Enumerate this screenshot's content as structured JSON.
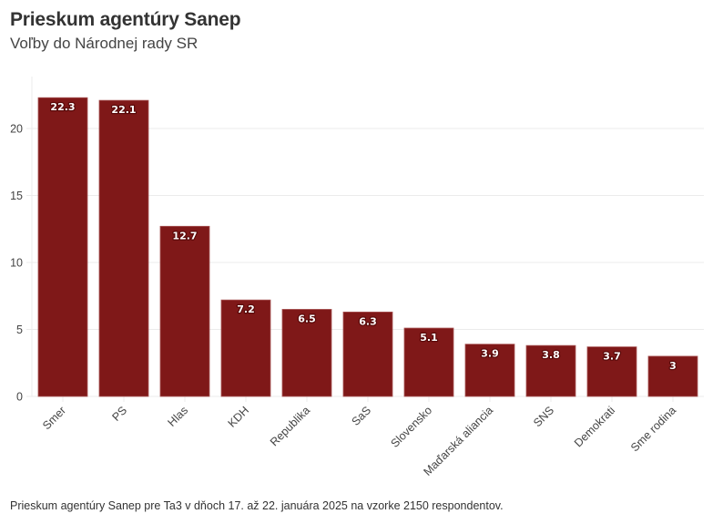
{
  "header": {
    "title": "Prieskum agentúry Sanep",
    "subtitle": "Voľby do Národnej rady SR"
  },
  "footnote": "Prieskum agentúry Sanep pre Ta3 v dňoch 17. až 22. januára 2025 na vzorke 2150 respondentov.",
  "colors": {
    "bar": "#7f1818",
    "bar_edge": "#a85454",
    "grid": "#ebebeb",
    "axis_text": "#444444"
  },
  "chart_data": {
    "type": "bar",
    "title": "Prieskum agentúry Sanep",
    "subtitle": "Voľby do Národnej rady SR",
    "xlabel": "",
    "ylabel": "",
    "categories": [
      "Smer",
      "PS",
      "Hlas",
      "KDH",
      "Republika",
      "SaS",
      "Slovensko",
      "Maďarská aliancia",
      "SNS",
      "Demokrati",
      "Sme rodina"
    ],
    "values": [
      22.3,
      22.1,
      12.7,
      7.2,
      6.5,
      6.3,
      5.1,
      3.9,
      3.8,
      3.7,
      3
    ],
    "data_labels": [
      "22.3",
      "22.1",
      "12.7",
      "7.2",
      "6.5",
      "6.3",
      "5.1",
      "3.9",
      "3.8",
      "3.7",
      "3"
    ],
    "ylim": [
      0,
      23
    ],
    "yticks": [
      0,
      5,
      10,
      15,
      20
    ],
    "grid": true,
    "legend": "none",
    "x_label_rotation_deg": -45
  }
}
